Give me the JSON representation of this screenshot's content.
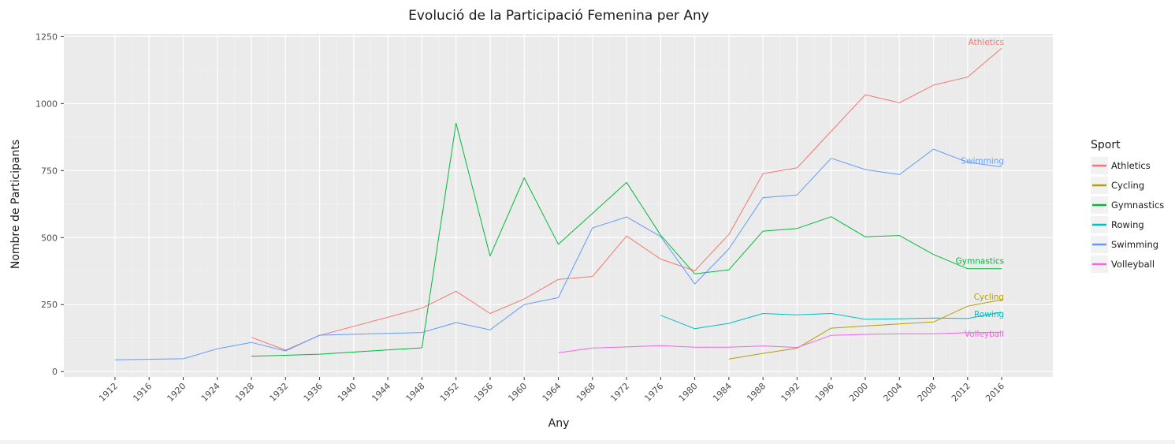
{
  "chart_data": {
    "type": "line",
    "title": "Evolució de la Participació Femenina per Any",
    "xlabel": "Any",
    "ylabel": "Nombre de Participants",
    "xlim": [
      1906,
      2022
    ],
    "ylim": [
      -20,
      1260
    ],
    "x_ticks": [
      1912,
      1916,
      1920,
      1924,
      1928,
      1932,
      1936,
      1940,
      1944,
      1948,
      1952,
      1956,
      1960,
      1964,
      1968,
      1972,
      1976,
      1980,
      1984,
      1988,
      1992,
      1996,
      2000,
      2004,
      2008,
      2012,
      2016
    ],
    "y_ticks": [
      0,
      250,
      500,
      750,
      1000,
      1250
    ],
    "grid": true,
    "legend": {
      "title": "Sport",
      "placement": "right"
    },
    "series": [
      {
        "name": "Athletics",
        "color": "#F8766D",
        "x": [
          1928,
          1932,
          1936,
          1948,
          1952,
          1956,
          1960,
          1964,
          1968,
          1972,
          1976,
          1980,
          1984,
          1988,
          1992,
          1996,
          2000,
          2004,
          2008,
          2012,
          2016
        ],
        "y": [
          128,
          80,
          135,
          237,
          300,
          217,
          271,
          344,
          355,
          506,
          420,
          376,
          512,
          739,
          760,
          897,
          1033,
          1003,
          1069,
          1099,
          1207
        ]
      },
      {
        "name": "Cycling",
        "color": "#B79F00",
        "x": [
          1984,
          1988,
          1992,
          1996,
          2000,
          2004,
          2008,
          2012,
          2016
        ],
        "y": [
          47,
          68,
          87,
          162,
          170,
          178,
          185,
          244,
          268
        ]
      },
      {
        "name": "Gymnastics",
        "color": "#00BA38",
        "x": [
          1928,
          1936,
          1948,
          1952,
          1956,
          1960,
          1964,
          1972,
          1976,
          1980,
          1984,
          1988,
          1992,
          1996,
          2000,
          2004,
          2008,
          2012,
          2016
        ],
        "y": [
          57,
          65,
          89,
          927,
          431,
          723,
          475,
          706,
          509,
          365,
          380,
          524,
          534,
          578,
          503,
          508,
          437,
          384,
          384
        ]
      },
      {
        "name": "Rowing",
        "color": "#00BFC4",
        "x": [
          1976,
          1980,
          1984,
          1988,
          1992,
          1996,
          2000,
          2004,
          2008,
          2012,
          2016
        ],
        "y": [
          210,
          160,
          180,
          217,
          212,
          217,
          195,
          197,
          200,
          198,
          222
        ]
      },
      {
        "name": "Swimming",
        "color": "#619CFF",
        "x": [
          1912,
          1920,
          1924,
          1928,
          1932,
          1936,
          1948,
          1952,
          1956,
          1960,
          1964,
          1968,
          1972,
          1976,
          1980,
          1984,
          1988,
          1992,
          1996,
          2000,
          2004,
          2008,
          2012,
          2016
        ],
        "y": [
          44,
          48,
          85,
          109,
          77,
          136,
          146,
          183,
          156,
          250,
          276,
          536,
          577,
          504,
          327,
          458,
          649,
          659,
          796,
          754,
          735,
          830,
          781,
          764
        ]
      },
      {
        "name": "Volleyball",
        "color": "#F564E3",
        "x": [
          1964,
          1968,
          1972,
          1976,
          1980,
          1984,
          1988,
          1992,
          1996,
          2000,
          2004,
          2008,
          2012,
          2016
        ],
        "y": [
          70,
          88,
          92,
          97,
          91,
          91,
          96,
          90,
          135,
          139,
          141,
          141,
          145,
          147
        ]
      }
    ]
  }
}
